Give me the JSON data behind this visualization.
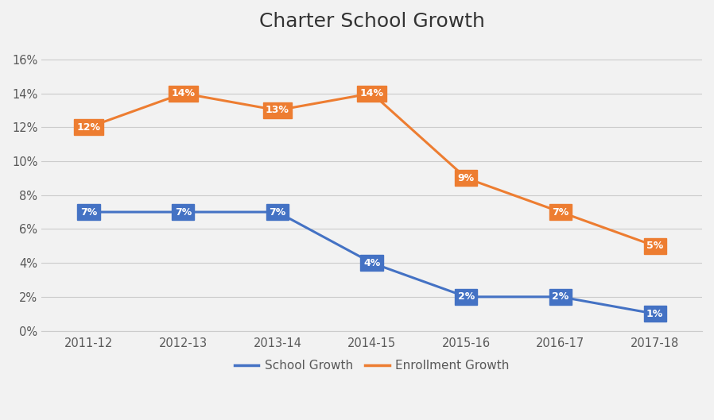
{
  "title": "Charter School Growth",
  "categories": [
    "2011-12",
    "2012-13",
    "2013-14",
    "2014-15",
    "2015-16",
    "2016-17",
    "2017-18"
  ],
  "school_growth": [
    7,
    7,
    7,
    4,
    2,
    2,
    1
  ],
  "enrollment_growth": [
    12,
    14,
    13,
    14,
    9,
    7,
    5
  ],
  "school_growth_labels": [
    "7%",
    "7%",
    "7%",
    "4%",
    "2%",
    "2%",
    "1%"
  ],
  "enrollment_growth_labels": [
    "12%",
    "14%",
    "13%",
    "14%",
    "9%",
    "7%",
    "5%"
  ],
  "school_color": "#4472C4",
  "enrollment_color": "#ED7D31",
  "ylim": [
    0,
    17
  ],
  "yticks": [
    0,
    2,
    4,
    6,
    8,
    10,
    12,
    14,
    16
  ],
  "ytick_labels": [
    "0%",
    "2%",
    "4%",
    "6%",
    "8%",
    "10%",
    "12%",
    "14%",
    "16%"
  ],
  "background_color": "#F2F2F2",
  "plot_area_color": "#FFFFFF",
  "title_fontsize": 18,
  "label_fontsize": 9,
  "legend_label_school": "School Growth",
  "legend_label_enrollment": "Enrollment Growth",
  "marker_size": 9,
  "line_width": 2.2
}
